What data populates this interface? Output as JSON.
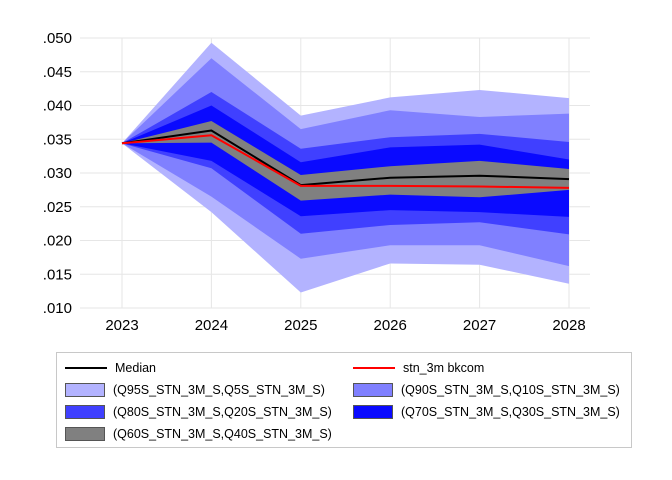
{
  "chart_data": {
    "type": "area",
    "title": "",
    "xlabel": "",
    "ylabel": "",
    "x": [
      "2023",
      "2024",
      "2025",
      "2026",
      "2027",
      "2028"
    ],
    "ylim": [
      0.01,
      0.05
    ],
    "yticks": [
      0.01,
      0.015,
      0.02,
      0.025,
      0.03,
      0.035,
      0.04,
      0.045,
      0.05
    ],
    "ytick_labels": [
      ".010",
      ".015",
      ".020",
      ".025",
      ".030",
      ".035",
      ".040",
      ".045",
      ".050"
    ],
    "grid": true,
    "legend_position": "bottom",
    "bands": [
      {
        "name": "(Q95S_STN_3M_S,Q5S_STN_3M_S)",
        "color": "#b3b3ff",
        "upper": [
          0.0344,
          0.0493,
          0.0385,
          0.0412,
          0.0423,
          0.0411
        ],
        "lower": [
          0.0344,
          0.0242,
          0.0123,
          0.0166,
          0.0164,
          0.0136
        ]
      },
      {
        "name": "(Q90S_STN_3M_S,Q10S_STN_3M_S)",
        "color": "#8080ff",
        "upper": [
          0.0344,
          0.047,
          0.0365,
          0.0393,
          0.0383,
          0.0388
        ],
        "lower": [
          0.0344,
          0.0265,
          0.0173,
          0.0193,
          0.0193,
          0.0162
        ]
      },
      {
        "name": "(Q80S_STN_3M_S,Q20S_STN_3M_S)",
        "color": "#4040ff",
        "upper": [
          0.0344,
          0.042,
          0.0336,
          0.0353,
          0.0358,
          0.0346
        ],
        "lower": [
          0.0344,
          0.0307,
          0.021,
          0.0223,
          0.0227,
          0.0209
        ]
      },
      {
        "name": "(Q70S_STN_3M_S,Q30S_STN_3M_S)",
        "color": "#0a0aff",
        "upper": [
          0.0344,
          0.04,
          0.0316,
          0.0338,
          0.0342,
          0.032
        ],
        "lower": [
          0.0344,
          0.0318,
          0.0236,
          0.0245,
          0.0242,
          0.0235
        ]
      },
      {
        "name": "(Q60S_STN_3M_S,Q40S_STN_3M_S)",
        "color": "#808080",
        "upper": [
          0.0344,
          0.0377,
          0.0297,
          0.031,
          0.0318,
          0.0306
        ],
        "lower": [
          0.0344,
          0.0345,
          0.0259,
          0.0268,
          0.0264,
          0.0275
        ]
      }
    ],
    "series": [
      {
        "name": "Median",
        "color": "#000000",
        "values": [
          0.0344,
          0.0363,
          0.0282,
          0.0293,
          0.0296,
          0.0291
        ]
      },
      {
        "name": "stn_3m bkcom",
        "color": "#ff0000",
        "values": [
          0.0344,
          0.0356,
          0.0281,
          0.0281,
          0.028,
          0.0278
        ]
      }
    ]
  },
  "legend": {
    "items": [
      {
        "kind": "line",
        "label": "Median",
        "color": "#000000"
      },
      {
        "kind": "line",
        "label": "stn_3m bkcom",
        "color": "#ff0000"
      },
      {
        "kind": "swatch",
        "label": "(Q95S_STN_3M_S,Q5S_STN_3M_S)",
        "color": "#b3b3ff"
      },
      {
        "kind": "swatch",
        "label": "(Q90S_STN_3M_S,Q10S_STN_3M_S)",
        "color": "#8080ff"
      },
      {
        "kind": "swatch",
        "label": "(Q80S_STN_3M_S,Q20S_STN_3M_S)",
        "color": "#4040ff"
      },
      {
        "kind": "swatch",
        "label": "(Q70S_STN_3M_S,Q30S_STN_3M_S)",
        "color": "#0a0aff"
      },
      {
        "kind": "swatch",
        "label": "(Q60S_STN_3M_S,Q40S_STN_3M_S)",
        "color": "#808080"
      }
    ]
  }
}
